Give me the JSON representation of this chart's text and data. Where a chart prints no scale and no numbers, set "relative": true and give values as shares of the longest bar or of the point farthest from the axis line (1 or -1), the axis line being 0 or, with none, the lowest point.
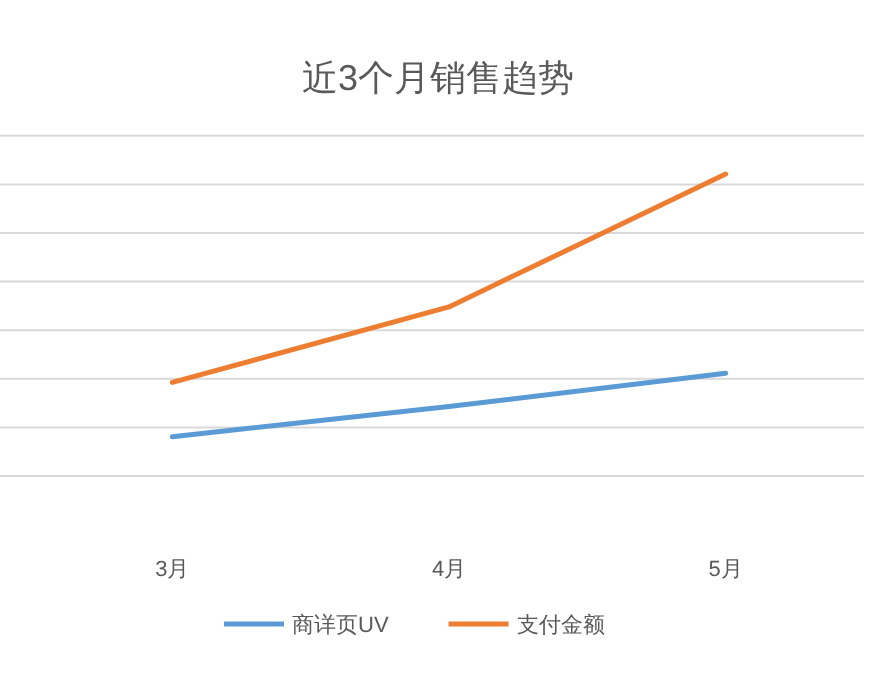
{
  "chart_data": {
    "type": "line",
    "title": "近3个月销售趋势",
    "categories": [
      "3月",
      "4月",
      "5月"
    ],
    "relative": true,
    "grid": "y",
    "legend": "bottom",
    "marker": "none",
    "line_style": "solid",
    "series": [
      {
        "name": "商详页UV",
        "color": "#5b9bd5",
        "values": [
          0.13,
          0.23,
          0.34
        ]
      },
      {
        "name": "支付金额",
        "color": "#ed7d31",
        "values": [
          0.31,
          0.56,
          1
        ]
      }
    ]
  }
}
